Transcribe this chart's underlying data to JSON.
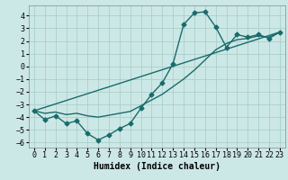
{
  "background_color": "#cce8e6",
  "grid_color": "#aacfcc",
  "line_color": "#1a6b6b",
  "line_width": 1.0,
  "marker": "D",
  "marker_size": 2.5,
  "xlabel": "Humidex (Indice chaleur)",
  "xlabel_fontsize": 7,
  "tick_fontsize": 6,
  "xlim": [
    -0.5,
    23.5
  ],
  "ylim": [
    -6.4,
    4.8
  ],
  "yticks": [
    -6,
    -5,
    -4,
    -3,
    -2,
    -1,
    0,
    1,
    2,
    3,
    4
  ],
  "xticks": [
    0,
    1,
    2,
    3,
    4,
    5,
    6,
    7,
    8,
    9,
    10,
    11,
    12,
    13,
    14,
    15,
    16,
    17,
    18,
    19,
    20,
    21,
    22,
    23
  ],
  "line1_x": [
    0,
    1,
    2,
    3,
    4,
    5,
    6,
    7,
    8,
    9,
    10,
    11,
    12,
    13,
    14,
    15,
    16,
    17,
    18,
    19,
    20,
    21,
    22,
    23
  ],
  "line1_y": [
    -3.5,
    -4.2,
    -3.9,
    -4.5,
    -4.3,
    -5.3,
    -5.8,
    -5.4,
    -4.9,
    -4.5,
    -3.3,
    -2.2,
    -1.3,
    0.2,
    3.3,
    4.2,
    4.3,
    3.1,
    1.5,
    2.5,
    2.3,
    2.5,
    2.2,
    2.7
  ],
  "line2_x": [
    0,
    23
  ],
  "line2_y": [
    -3.5,
    2.7
  ],
  "line3_x": [
    0,
    1,
    2,
    3,
    4,
    5,
    6,
    7,
    8,
    9,
    10,
    11,
    12,
    13,
    14,
    15,
    16,
    17,
    18,
    19,
    20,
    21,
    22,
    23
  ],
  "line3_y": [
    -3.5,
    -3.7,
    -3.6,
    -3.8,
    -3.7,
    -3.9,
    -4.0,
    -3.85,
    -3.7,
    -3.55,
    -3.1,
    -2.65,
    -2.2,
    -1.6,
    -1.0,
    -0.3,
    0.5,
    1.3,
    1.8,
    2.1,
    2.2,
    2.4,
    2.3,
    2.7
  ]
}
